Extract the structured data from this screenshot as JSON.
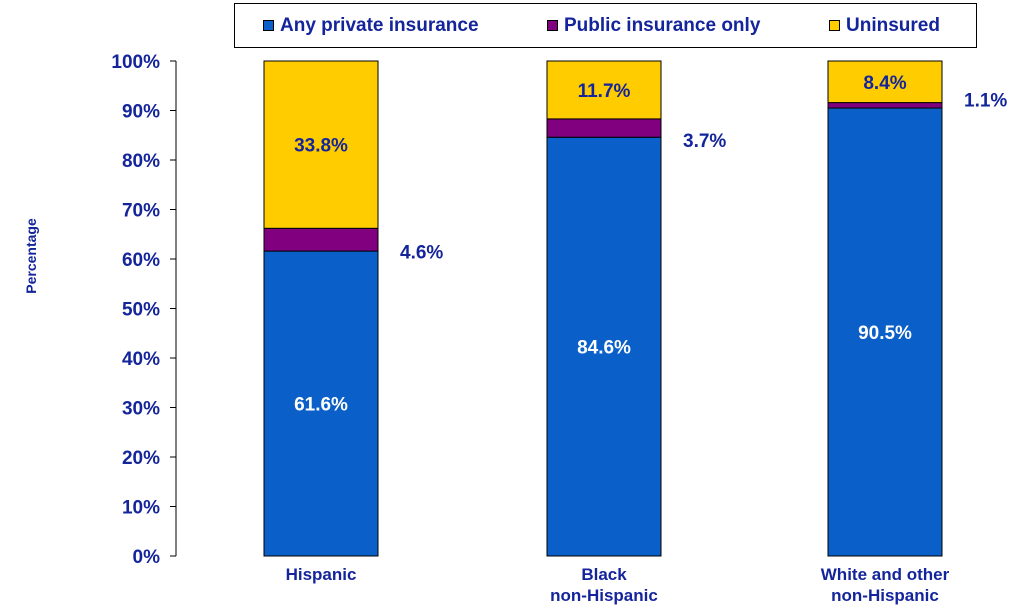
{
  "chart_data": {
    "type": "bar",
    "stacked": true,
    "categories": [
      [
        "Hispanic"
      ],
      [
        "Black",
        "non-Hispanic"
      ],
      [
        "White and other",
        "non-Hispanic"
      ]
    ],
    "series": [
      {
        "name": "Any private insurance",
        "color": "#0a5fc8",
        "values": [
          61.6,
          84.6,
          90.5
        ],
        "labels": [
          "61.6%",
          "84.6%",
          "90.5%"
        ]
      },
      {
        "name": "Public insurance only",
        "color": "#800080",
        "values": [
          4.6,
          3.7,
          1.1
        ],
        "labels": [
          "4.6%",
          "3.7%",
          "1.1%"
        ]
      },
      {
        "name": "Uninsured",
        "color": "#ffcc00",
        "values": [
          33.8,
          11.7,
          8.4
        ],
        "labels": [
          "33.8%",
          "11.7%",
          "8.4%"
        ]
      }
    ],
    "ylabel": "Percentage",
    "ylim": [
      0,
      100
    ],
    "yticks": [
      "0%",
      "10%",
      "20%",
      "30%",
      "40%",
      "50%",
      "60%",
      "70%",
      "80%",
      "90%",
      "100%"
    ],
    "grid": false,
    "legend_position": "top"
  },
  "colors": {
    "text": "#14259b",
    "white_label": "#ffffff"
  }
}
